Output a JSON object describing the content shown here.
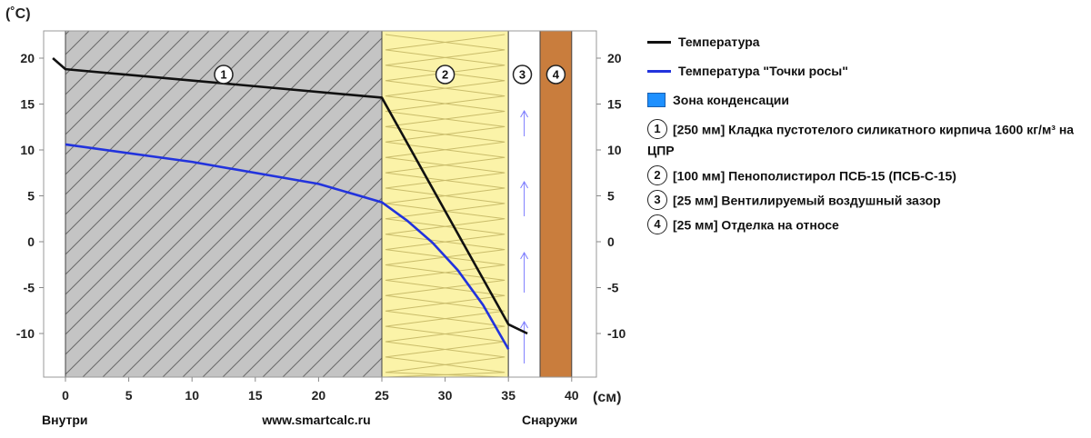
{
  "chart_data": {
    "type": "line",
    "y_unit_label": "(˚C)",
    "x_unit_label": "(см)",
    "xlim": [
      -2,
      41
    ],
    "ylim": [
      -15,
      23
    ],
    "x_ticks": [
      0,
      5,
      10,
      15,
      20,
      25,
      30,
      35,
      40
    ],
    "y_ticks": [
      20,
      15,
      10,
      5,
      0,
      -5,
      -10
    ],
    "bottom_labels": {
      "left": "Внутри",
      "center": "www.smartcalc.ru",
      "right": "Снаружи"
    },
    "layers": [
      {
        "number": "1",
        "from": 0,
        "to": 25,
        "fill": "#c4c4c4",
        "pattern": "hatch"
      },
      {
        "number": "2",
        "from": 25,
        "to": 35,
        "fill": "#fbf3a8",
        "pattern": "insulation"
      },
      {
        "number": "3",
        "from": 35,
        "to": 37.5,
        "fill": "#ffffff",
        "pattern": "airflow"
      },
      {
        "number": "4",
        "from": 37.5,
        "to": 40,
        "fill": "#c97d3d",
        "pattern": "none"
      }
    ],
    "series": [
      {
        "name": "Температура",
        "color": "#111111",
        "x": [
          -1,
          0,
          25,
          35,
          36.5
        ],
        "y": [
          20,
          18.8,
          15.7,
          -9,
          -10
        ]
      },
      {
        "name": "Температура \"Точки росы\"",
        "color": "#2233dd",
        "x": [
          0,
          10,
          20,
          25,
          27,
          29,
          31,
          33,
          35
        ],
        "y": [
          10.6,
          8.7,
          6.3,
          4.3,
          2.3,
          -0.1,
          -3.1,
          -6.9,
          -11.7
        ]
      }
    ],
    "condensation_zone_label": "Зона конденсации",
    "condensation_zone_color": "#1e90ff"
  },
  "legend": {
    "temperature": "Температура",
    "dew_point": "Температура \"Точки росы\"",
    "condensation": "Зона конденсации",
    "layers": [
      {
        "number": "1",
        "text": "[250 мм] Кладка пустотелого силикатного кирпича 1600 кг/м³ на ЦПР"
      },
      {
        "number": "2",
        "text": "[100 мм] Пенополистирол ПСБ-15 (ПСБ-С-15)"
      },
      {
        "number": "3",
        "text": "[25 мм] Вентилируемый воздушный зазор"
      },
      {
        "number": "4",
        "text": "[25 мм] Отделка на относе"
      }
    ]
  }
}
